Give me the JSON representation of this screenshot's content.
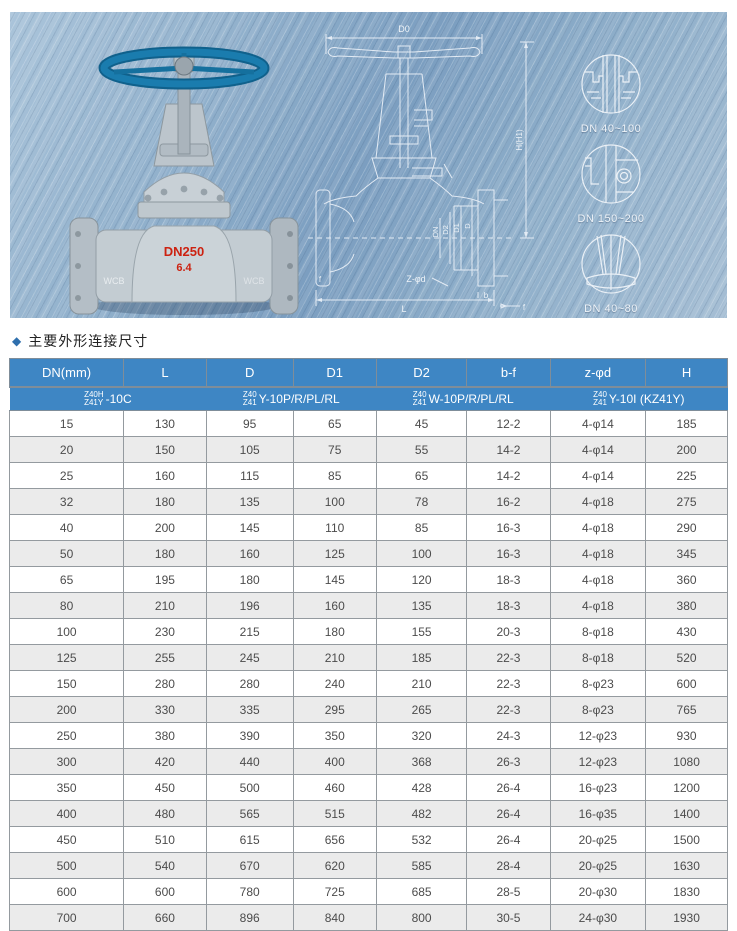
{
  "hero": {
    "photo": {
      "body_marking_dn": "DN250",
      "body_marking_pn": "6.4",
      "flange_left_marking": "WCB",
      "flange_right_marking": "WCB"
    },
    "drawing_labels": {
      "d0": "D0",
      "h": "H(H1)",
      "dn": "DN",
      "d2": "D2",
      "d1": "D1",
      "d": "D",
      "zphid": "Z-φd",
      "b": "b",
      "f_right": "f",
      "f_left": "f",
      "l": "L"
    },
    "details": [
      {
        "label": "DN 40~100"
      },
      {
        "label": "DN 150~200"
      },
      {
        "label": "DN 40~80"
      }
    ]
  },
  "section": {
    "bullet": "◆",
    "title": "主要外形连接尺寸"
  },
  "table": {
    "headers": [
      "DN(mm)",
      "L",
      "D",
      "D1",
      "D2",
      "b-f",
      "z-φd",
      "H"
    ],
    "models": [
      {
        "top": "Z40H",
        "bottom": "Z41Y",
        "suffix": "-10C"
      },
      {
        "top": "Z40",
        "bottom": "Z41",
        "suffix": "Y-10P/R/PL/RL"
      },
      {
        "top": "Z40",
        "bottom": "Z41",
        "suffix": "W-10P/R/PL/RL"
      },
      {
        "top": "Z40",
        "bottom": "Z41",
        "suffix": "Y-10I   (KZ41Y)"
      }
    ],
    "rows": [
      [
        "15",
        "130",
        "95",
        "65",
        "45",
        "12-2",
        "4-φ14",
        "185"
      ],
      [
        "20",
        "150",
        "105",
        "75",
        "55",
        "14-2",
        "4-φ14",
        "200"
      ],
      [
        "25",
        "160",
        "115",
        "85",
        "65",
        "14-2",
        "4-φ14",
        "225"
      ],
      [
        "32",
        "180",
        "135",
        "100",
        "78",
        "16-2",
        "4-φ18",
        "275"
      ],
      [
        "40",
        "200",
        "145",
        "110",
        "85",
        "16-3",
        "4-φ18",
        "290"
      ],
      [
        "50",
        "180",
        "160",
        "125",
        "100",
        "16-3",
        "4-φ18",
        "345"
      ],
      [
        "65",
        "195",
        "180",
        "145",
        "120",
        "18-3",
        "4-φ18",
        "360"
      ],
      [
        "80",
        "210",
        "196",
        "160",
        "135",
        "18-3",
        "4-φ18",
        "380"
      ],
      [
        "100",
        "230",
        "215",
        "180",
        "155",
        "20-3",
        "8-φ18",
        "430"
      ],
      [
        "125",
        "255",
        "245",
        "210",
        "185",
        "22-3",
        "8-φ18",
        "520"
      ],
      [
        "150",
        "280",
        "280",
        "240",
        "210",
        "22-3",
        "8-φ23",
        "600"
      ],
      [
        "200",
        "330",
        "335",
        "295",
        "265",
        "22-3",
        "8-φ23",
        "765"
      ],
      [
        "250",
        "380",
        "390",
        "350",
        "320",
        "24-3",
        "12-φ23",
        "930"
      ],
      [
        "300",
        "420",
        "440",
        "400",
        "368",
        "26-3",
        "12-φ23",
        "1080"
      ],
      [
        "350",
        "450",
        "500",
        "460",
        "428",
        "26-4",
        "16-φ23",
        "1200"
      ],
      [
        "400",
        "480",
        "565",
        "515",
        "482",
        "26-4",
        "16-φ35",
        "1400"
      ],
      [
        "450",
        "510",
        "615",
        "656",
        "532",
        "26-4",
        "20-φ25",
        "1500"
      ],
      [
        "500",
        "540",
        "670",
        "620",
        "585",
        "28-4",
        "20-φ25",
        "1630"
      ],
      [
        "600",
        "600",
        "780",
        "725",
        "685",
        "28-5",
        "20-φ30",
        "1830"
      ],
      [
        "700",
        "660",
        "896",
        "840",
        "800",
        "30-5",
        "24-φ30",
        "1930"
      ]
    ]
  },
  "colors": {
    "header_blue": "#3e86c4",
    "row_alt": "#ebebeb",
    "border": "#949a9f",
    "bullet_blue": "#2f6fad",
    "marking_red": "#cc2211",
    "handwheel_teal": "#1a7cae"
  }
}
